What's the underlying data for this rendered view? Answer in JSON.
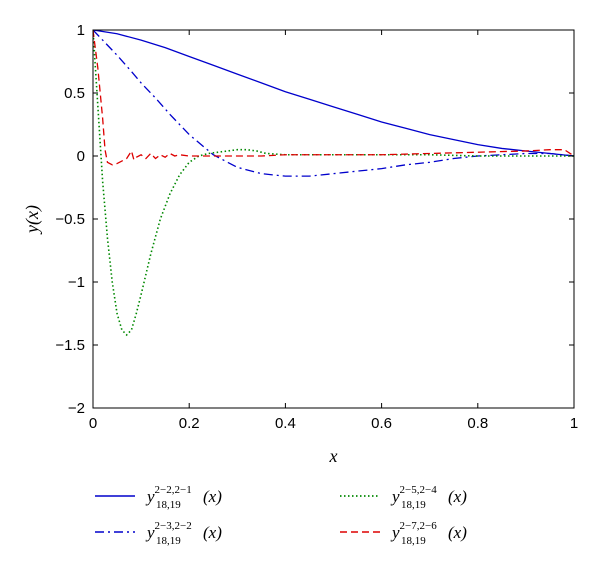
{
  "chart_data": {
    "type": "line",
    "title": "",
    "xlabel": "x",
    "ylabel": "y(x)",
    "xlim": [
      0,
      1
    ],
    "ylim": [
      -2,
      1
    ],
    "x_ticks": [
      0,
      0.2,
      0.4,
      0.6,
      0.8,
      1
    ],
    "y_ticks": [
      -2,
      -1.5,
      -1,
      -0.5,
      0,
      0.5,
      1
    ],
    "x_tick_labels": [
      "0",
      "0.2",
      "0.4",
      "0.6",
      "0.8",
      "1"
    ],
    "y_tick_labels": [
      "−2",
      "−1.5",
      "−1",
      "−0.5",
      "0",
      "0.5",
      "1"
    ],
    "grid": false,
    "legend_position": "bottom, outside plot, two columns",
    "series": [
      {
        "legend": {
          "base": "y",
          "sub": "18,19",
          "sup": "2−2,2−1",
          "arg": "(x)"
        },
        "color": "#0000cc",
        "style": "solid",
        "x": [
          0,
          0.05,
          0.1,
          0.15,
          0.2,
          0.25,
          0.3,
          0.35,
          0.4,
          0.45,
          0.5,
          0.55,
          0.6,
          0.65,
          0.7,
          0.75,
          0.8,
          0.85,
          0.9,
          0.95,
          1
        ],
        "y": [
          1,
          0.97,
          0.92,
          0.86,
          0.79,
          0.72,
          0.65,
          0.58,
          0.51,
          0.45,
          0.39,
          0.33,
          0.27,
          0.22,
          0.17,
          0.13,
          0.09,
          0.06,
          0.04,
          0.02,
          0
        ]
      },
      {
        "legend": {
          "base": "y",
          "sub": "18,19",
          "sup": "2−3,2−2",
          "arg": "(x)"
        },
        "color": "#0000cc",
        "style": "dashdot",
        "x": [
          0,
          0.02,
          0.05,
          0.08,
          0.1,
          0.13,
          0.16,
          0.2,
          0.25,
          0.3,
          0.35,
          0.4,
          0.45,
          0.5,
          0.55,
          0.6,
          0.65,
          0.7,
          0.75,
          0.8,
          0.85,
          0.9,
          0.95,
          1
        ],
        "y": [
          1,
          0.92,
          0.8,
          0.67,
          0.58,
          0.46,
          0.33,
          0.17,
          0.01,
          -0.09,
          -0.14,
          -0.16,
          -0.16,
          -0.14,
          -0.12,
          -0.1,
          -0.07,
          -0.05,
          -0.02,
          0,
          0.01,
          0.02,
          0.02,
          0
        ]
      },
      {
        "legend": {
          "base": "y",
          "sub": "18,19",
          "sup": "2−5,2−4",
          "arg": "(x)"
        },
        "color": "#008800",
        "style": "dotted",
        "x": [
          0,
          0.01,
          0.02,
          0.03,
          0.04,
          0.05,
          0.06,
          0.07,
          0.08,
          0.09,
          0.1,
          0.12,
          0.14,
          0.16,
          0.18,
          0.2,
          0.22,
          0.24,
          0.26,
          0.28,
          0.3,
          0.32,
          0.34,
          0.36,
          0.4,
          0.45,
          0.5,
          0.6,
          0.7,
          0.8,
          0.9,
          0.95,
          1
        ],
        "y": [
          1,
          0.4,
          -0.2,
          -0.65,
          -1.0,
          -1.25,
          -1.38,
          -1.42,
          -1.38,
          -1.25,
          -1.1,
          -0.78,
          -0.5,
          -0.3,
          -0.15,
          -0.05,
          0,
          0.02,
          0.03,
          0.04,
          0.05,
          0.05,
          0.04,
          0.02,
          0.01,
          0.01,
          0.01,
          0.01,
          0.01,
          0,
          0,
          0,
          0
        ]
      },
      {
        "legend": {
          "base": "y",
          "sub": "18,19",
          "sup": "2−7,2−6",
          "arg": "(x)"
        },
        "color": "#dd0000",
        "style": "dashed",
        "x": [
          0,
          0.01,
          0.02,
          0.025,
          0.03,
          0.04,
          0.05,
          0.06,
          0.07,
          0.08,
          0.085,
          0.09,
          0.1,
          0.11,
          0.12,
          0.13,
          0.14,
          0.15,
          0.16,
          0.17,
          0.18,
          0.2,
          0.25,
          0.3,
          0.35,
          0.4,
          0.5,
          0.6,
          0.7,
          0.8,
          0.9,
          0.95,
          0.98,
          1
        ],
        "y": [
          1,
          0.7,
          0.3,
          0.05,
          -0.05,
          -0.07,
          -0.06,
          -0.04,
          -0.02,
          0.04,
          -0.03,
          -0.01,
          0.01,
          -0.02,
          0.02,
          -0.02,
          0.01,
          -0.01,
          0.02,
          0,
          0.01,
          0,
          0,
          0,
          0,
          0.01,
          0.01,
          0.01,
          0.02,
          0.03,
          0.04,
          0.05,
          0.05,
          0
        ]
      }
    ]
  }
}
